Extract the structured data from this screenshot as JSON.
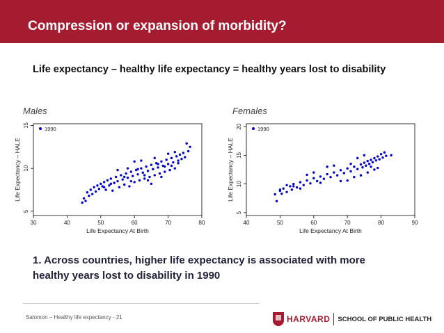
{
  "header": {
    "title": "Compression or expansion of morbidity?"
  },
  "subtitle": "Life expectancy – healthy life expectancy  =  healthy years lost to disability",
  "panels": {
    "males_label": "Males",
    "females_label": "Females"
  },
  "chart_data": [
    {
      "type": "scatter",
      "name": "Males",
      "xlabel": "Life Expectancy At Birth",
      "ylabel": "Life Expectancy – HALE",
      "xlim": [
        30,
        80
      ],
      "ylim": [
        4.5,
        15.2
      ],
      "xticks": [
        30,
        40,
        50,
        60,
        70,
        80
      ],
      "yticks": [
        5,
        10,
        15
      ],
      "legend": "1990",
      "legend_position": "top-left",
      "series": [
        {
          "name": "1990",
          "color": "#0000cc",
          "points": [
            [
              44.5,
              6.0
            ],
            [
              45,
              6.5
            ],
            [
              45.5,
              6.2
            ],
            [
              46,
              7.2
            ],
            [
              46.5,
              6.8
            ],
            [
              47,
              7.5
            ],
            [
              47.5,
              7.0
            ],
            [
              48,
              7.8
            ],
            [
              48.5,
              7.3
            ],
            [
              49,
              8.0
            ],
            [
              49.5,
              7.6
            ],
            [
              50,
              8.2
            ],
            [
              50.5,
              7.9
            ],
            [
              51,
              8.4
            ],
            [
              51.5,
              7.5
            ],
            [
              52,
              8.6
            ],
            [
              52.5,
              8.0
            ],
            [
              53,
              8.8
            ],
            [
              53.5,
              7.4
            ],
            [
              54,
              8.3
            ],
            [
              54.5,
              9.0
            ],
            [
              55,
              8.5
            ],
            [
              55.5,
              7.8
            ],
            [
              56,
              9.2
            ],
            [
              56.5,
              8.7
            ],
            [
              57,
              8.1
            ],
            [
              57.5,
              9.4
            ],
            [
              58,
              8.9
            ],
            [
              58.5,
              7.9
            ],
            [
              59,
              9.6
            ],
            [
              59.5,
              9.1
            ],
            [
              60,
              8.4
            ],
            [
              60.5,
              9.8
            ],
            [
              61,
              9.3
            ],
            [
              61.5,
              8.6
            ],
            [
              62,
              10.0
            ],
            [
              62.5,
              9.5
            ],
            [
              63,
              8.8
            ],
            [
              63.5,
              10.2
            ],
            [
              64,
              9.7
            ],
            [
              64.5,
              9.0
            ],
            [
              65,
              10.4
            ],
            [
              65.5,
              9.9
            ],
            [
              66,
              9.2
            ],
            [
              66.5,
              10.6
            ],
            [
              67,
              10.1
            ],
            [
              67.5,
              9.4
            ],
            [
              68,
              10.8
            ],
            [
              68.5,
              10.3
            ],
            [
              69,
              9.6
            ],
            [
              69.5,
              11.0
            ],
            [
              70,
              10.5
            ],
            [
              70.5,
              9.8
            ],
            [
              71,
              11.2
            ],
            [
              71.5,
              10.7
            ],
            [
              72,
              10.0
            ],
            [
              72.5,
              11.4
            ],
            [
              73,
              10.9
            ],
            [
              73.5,
              11.6
            ],
            [
              74,
              11.1
            ],
            [
              74.5,
              11.8
            ],
            [
              75,
              11.3
            ],
            [
              75.5,
              12.9
            ],
            [
              76,
              12.0
            ],
            [
              76.5,
              12.5
            ],
            [
              60,
              10.8
            ],
            [
              62,
              10.9
            ],
            [
              58,
              10.0
            ],
            [
              64,
              8.6
            ],
            [
              66,
              11.2
            ],
            [
              68,
              9.0
            ],
            [
              70,
              11.7
            ],
            [
              72,
              11.9
            ],
            [
              63,
              9.2
            ],
            [
              65,
              8.2
            ],
            [
              67,
              10.5
            ],
            [
              69,
              10.2
            ],
            [
              71,
              10.3
            ],
            [
              73,
              10.6
            ],
            [
              61,
              9.9
            ],
            [
              59,
              8.5
            ],
            [
              57,
              9.0
            ],
            [
              55,
              9.8
            ],
            [
              53,
              8.2
            ],
            [
              51,
              7.8
            ]
          ]
        }
      ]
    },
    {
      "type": "scatter",
      "name": "Females",
      "xlabel": "Life Expectancy At Birth",
      "ylabel": "Life Expectancy – HALE",
      "xlim": [
        40,
        90
      ],
      "ylim": [
        4.5,
        20.5
      ],
      "xticks": [
        40,
        50,
        60,
        70,
        80,
        90
      ],
      "yticks": [
        5,
        10,
        15,
        20
      ],
      "legend": "1990",
      "legend_position": "top-left",
      "series": [
        {
          "name": "1990",
          "color": "#0000cc",
          "points": [
            [
              48.5,
              8.2
            ],
            [
              49,
              7.0
            ],
            [
              50,
              8.8
            ],
            [
              50.5,
              8.3
            ],
            [
              51,
              9.2
            ],
            [
              52,
              8.6
            ],
            [
              53,
              9.6
            ],
            [
              53.5,
              9.0
            ],
            [
              54,
              10.0
            ],
            [
              55,
              9.4
            ],
            [
              56,
              10.3
            ],
            [
              57,
              9.8
            ],
            [
              58,
              10.6
            ],
            [
              59,
              10.1
            ],
            [
              60,
              11.0
            ],
            [
              61,
              10.5
            ],
            [
              62,
              11.3
            ],
            [
              63,
              10.9
            ],
            [
              64,
              11.7
            ],
            [
              65,
              11.2
            ],
            [
              66,
              12.0
            ],
            [
              67,
              11.5
            ],
            [
              68,
              12.4
            ],
            [
              69,
              11.9
            ],
            [
              70,
              12.7
            ],
            [
              71,
              12.2
            ],
            [
              72,
              13.0
            ],
            [
              73,
              12.6
            ],
            [
              74,
              13.4
            ],
            [
              74.5,
              12.9
            ],
            [
              75,
              13.7
            ],
            [
              75.5,
              13.2
            ],
            [
              76,
              14.0
            ],
            [
              76.5,
              13.5
            ],
            [
              77,
              14.2
            ],
            [
              77.5,
              13.8
            ],
            [
              78,
              14.5
            ],
            [
              78.5,
              14.1
            ],
            [
              79,
              14.8
            ],
            [
              79.5,
              14.3
            ],
            [
              80,
              15.2
            ],
            [
              80.5,
              14.6
            ],
            [
              81,
              15.5
            ],
            [
              81.5,
              14.9
            ],
            [
              83,
              15.0
            ],
            [
              70,
              10.6
            ],
            [
              72,
              11.2
            ],
            [
              74,
              11.5
            ],
            [
              76,
              12.0
            ],
            [
              78,
              12.5
            ],
            [
              73,
              14.5
            ],
            [
              75,
              15.0
            ],
            [
              77,
              13.0
            ],
            [
              79,
              12.8
            ],
            [
              71,
              13.5
            ],
            [
              68,
              10.5
            ],
            [
              66,
              13.2
            ],
            [
              64,
              13.0
            ],
            [
              62,
              10.2
            ],
            [
              60,
              12.0
            ],
            [
              58,
              11.6
            ],
            [
              56,
              9.2
            ],
            [
              54,
              9.6
            ],
            [
              52,
              9.8
            ],
            [
              50,
              9.0
            ]
          ]
        }
      ]
    }
  ],
  "bottom_text": {
    "line1": "1. Across countries, higher life expectancy is associated with more",
    "line2": "healthy years lost to disability in 1990"
  },
  "footer": {
    "text": "Salomon – Healthy life expectancy - 21",
    "logo_harvard": "HARVARD",
    "logo_school": "SCHOOL OF PUBLIC HEALTH"
  }
}
